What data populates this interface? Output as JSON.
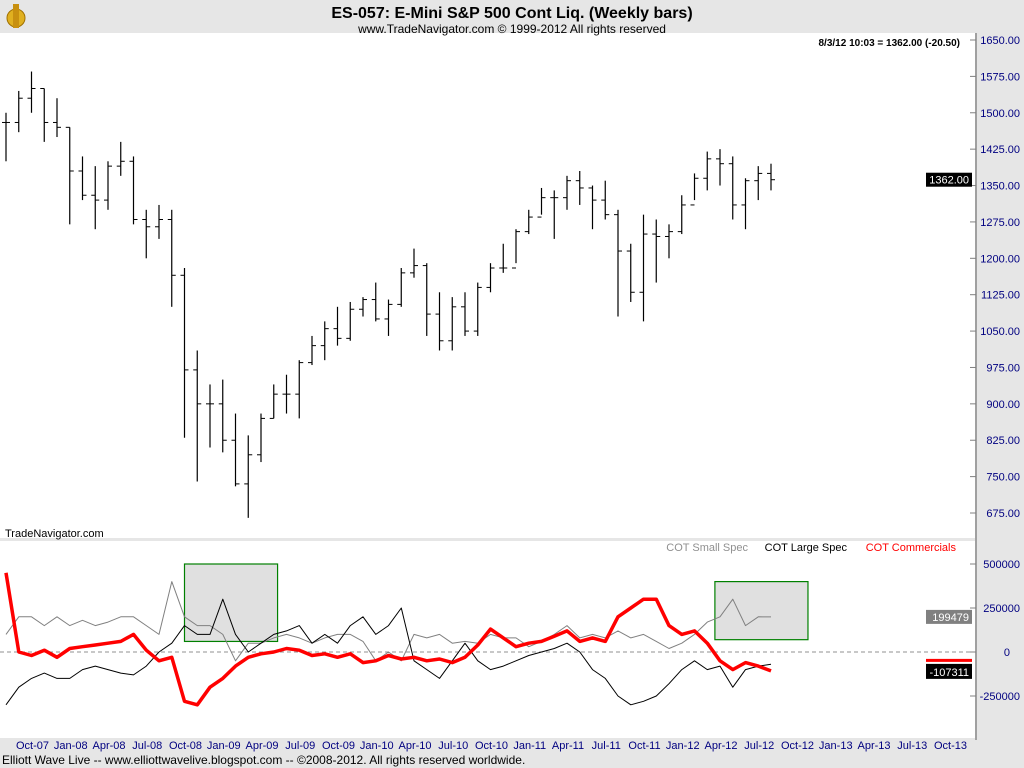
{
  "header": {
    "title": "ES-057:  E-Mini S&P 500 Cont Liq.  (Weekly bars)",
    "subtitle": "www.TradeNavigator.com © 1999-2012 All rights reserved",
    "quote": "8/3/12 10:03 = 1362.00 (-20.50)"
  },
  "watermark": "TradeNavigator.com",
  "footer": "Elliott Wave Live -- www.elliottwavelive.blogspot.com -- ©2008-2012. All rights reserved worldwide.",
  "colors": {
    "price": "#000000",
    "small_spec": "#808080",
    "large_spec": "#000000",
    "commercials": "#ff0000",
    "axis_text": "#000080",
    "highlight_border": "#008000",
    "highlight_fill": "#e0e0e0"
  },
  "chart_data": [
    {
      "type": "ohlc",
      "title": "ES-057:  E-Mini S&P 500 Cont Liq.  (Weekly bars)",
      "start_month": "2007-08",
      "bar_format": [
        "high",
        "low",
        "close"
      ],
      "bars": [
        [
          1500,
          1400,
          1480
        ],
        [
          1545,
          1460,
          1530
        ],
        [
          1585,
          1500,
          1550
        ],
        [
          1550,
          1440,
          1480
        ],
        [
          1530,
          1450,
          1470
        ],
        [
          1470,
          1270,
          1380
        ],
        [
          1410,
          1320,
          1330
        ],
        [
          1390,
          1260,
          1320
        ],
        [
          1400,
          1300,
          1390
        ],
        [
          1440,
          1370,
          1400
        ],
        [
          1410,
          1270,
          1280
        ],
        [
          1300,
          1200,
          1265
        ],
        [
          1310,
          1240,
          1280
        ],
        [
          1300,
          1100,
          1165
        ],
        [
          1180,
          830,
          970
        ],
        [
          1010,
          740,
          900
        ],
        [
          940,
          810,
          900
        ],
        [
          950,
          800,
          825
        ],
        [
          880,
          730,
          735
        ],
        [
          835,
          665,
          795
        ],
        [
          880,
          780,
          870
        ],
        [
          940,
          870,
          920
        ],
        [
          960,
          880,
          920
        ],
        [
          990,
          870,
          985
        ],
        [
          1040,
          980,
          1020
        ],
        [
          1070,
          990,
          1055
        ],
        [
          1100,
          1020,
          1035
        ],
        [
          1110,
          1030,
          1095
        ],
        [
          1120,
          1080,
          1115
        ],
        [
          1150,
          1070,
          1075
        ],
        [
          1115,
          1040,
          1105
        ],
        [
          1180,
          1100,
          1170
        ],
        [
          1220,
          1160,
          1185
        ],
        [
          1190,
          1040,
          1085
        ],
        [
          1130,
          1010,
          1030
        ],
        [
          1120,
          1010,
          1100
        ],
        [
          1130,
          1040,
          1050
        ],
        [
          1150,
          1040,
          1140
        ],
        [
          1190,
          1130,
          1180
        ],
        [
          1230,
          1170,
          1180
        ],
        [
          1260,
          1190,
          1255
        ],
        [
          1300,
          1250,
          1285
        ],
        [
          1345,
          1290,
          1325
        ],
        [
          1340,
          1240,
          1325
        ],
        [
          1370,
          1300,
          1360
        ],
        [
          1380,
          1310,
          1345
        ],
        [
          1350,
          1260,
          1320
        ],
        [
          1360,
          1280,
          1290
        ],
        [
          1300,
          1080,
          1215
        ],
        [
          1230,
          1110,
          1130
        ],
        [
          1290,
          1070,
          1250
        ],
        [
          1280,
          1150,
          1245
        ],
        [
          1270,
          1200,
          1255
        ],
        [
          1330,
          1250,
          1310
        ],
        [
          1375,
          1320,
          1365
        ],
        [
          1420,
          1340,
          1405
        ],
        [
          1425,
          1350,
          1395
        ],
        [
          1410,
          1280,
          1310
        ],
        [
          1365,
          1260,
          1360
        ],
        [
          1390,
          1320,
          1375
        ],
        [
          1395,
          1340,
          1362
        ]
      ],
      "y_ticks": [
        "1650.00",
        "1575.00",
        "1500.00",
        "1425.00",
        "1350.00",
        "1275.00",
        "1200.00",
        "1125.00",
        "1050.00",
        "975.00",
        "900.00",
        "825.00",
        "750.00",
        "675.00"
      ],
      "ylim": [
        675,
        1650
      ],
      "last_value": "1362.00"
    },
    {
      "type": "line",
      "start_month": "2007-08",
      "legend": "top-right",
      "series": [
        {
          "name": "COT Small Spec",
          "color": "#808080",
          "values": [
            100000,
            200000,
            200000,
            150000,
            200000,
            150000,
            180000,
            150000,
            170000,
            200000,
            200000,
            150000,
            100000,
            400000,
            200000,
            150000,
            150000,
            100000,
            -50000,
            50000,
            50000,
            80000,
            100000,
            80000,
            50000,
            80000,
            100000,
            100000,
            60000,
            -50000,
            0,
            -50000,
            100000,
            80000,
            100000,
            50000,
            60000,
            50000,
            100000,
            80000,
            80000,
            30000,
            60000,
            100000,
            150000,
            80000,
            100000,
            80000,
            120000,
            80000,
            100000,
            60000,
            20000,
            50000,
            100000,
            170000,
            200000,
            300000,
            150000,
            200000,
            199479
          ]
        },
        {
          "name": "COT Large Spec",
          "color": "#000000",
          "values": [
            -300000,
            -200000,
            -150000,
            -120000,
            -150000,
            -150000,
            -100000,
            -80000,
            -100000,
            -120000,
            -130000,
            -80000,
            0,
            50000,
            150000,
            100000,
            100000,
            300000,
            100000,
            0,
            50000,
            100000,
            120000,
            150000,
            50000,
            100000,
            50000,
            150000,
            200000,
            100000,
            150000,
            250000,
            -50000,
            -100000,
            -150000,
            -50000,
            50000,
            -50000,
            -100000,
            -80000,
            -50000,
            -20000,
            0,
            20000,
            50000,
            0,
            -100000,
            -150000,
            -250000,
            -300000,
            -280000,
            -250000,
            -180000,
            -100000,
            -50000,
            -100000,
            -80000,
            -200000,
            -100000,
            -80000,
            -70000
          ]
        },
        {
          "name": "COT Commercials",
          "color": "#ff0000",
          "values": [
            450000,
            0,
            -20000,
            10000,
            -30000,
            20000,
            30000,
            40000,
            50000,
            60000,
            100000,
            10000,
            -50000,
            -30000,
            -280000,
            -300000,
            -200000,
            -150000,
            -80000,
            -30000,
            -10000,
            0,
            20000,
            10000,
            -20000,
            -10000,
            -30000,
            -10000,
            -60000,
            -50000,
            -20000,
            -40000,
            -30000,
            -50000,
            -40000,
            -60000,
            -30000,
            40000,
            130000,
            80000,
            30000,
            50000,
            60000,
            90000,
            120000,
            60000,
            80000,
            60000,
            200000,
            250000,
            300000,
            300000,
            150000,
            100000,
            120000,
            50000,
            -50000,
            -100000,
            -60000,
            -80000,
            -107311
          ]
        }
      ],
      "y_ticks": [
        "500000",
        "250000",
        "0",
        "-250000"
      ],
      "last_values": [
        "199479",
        "-107311"
      ],
      "x_ticks": [
        "Oct-07",
        "Jan-08",
        "Apr-08",
        "Jul-08",
        "Oct-08",
        "Jan-09",
        "Apr-09",
        "Jul-09",
        "Oct-09",
        "Jan-10",
        "Apr-10",
        "Jul-10",
        "Oct-10",
        "Jan-11",
        "Apr-11",
        "Jul-11",
        "Oct-11",
        "Jan-12",
        "Apr-12",
        "Jul-12",
        "Oct-12",
        "Jan-13",
        "Apr-13",
        "Jul-13",
        "Oct-13"
      ]
    }
  ]
}
